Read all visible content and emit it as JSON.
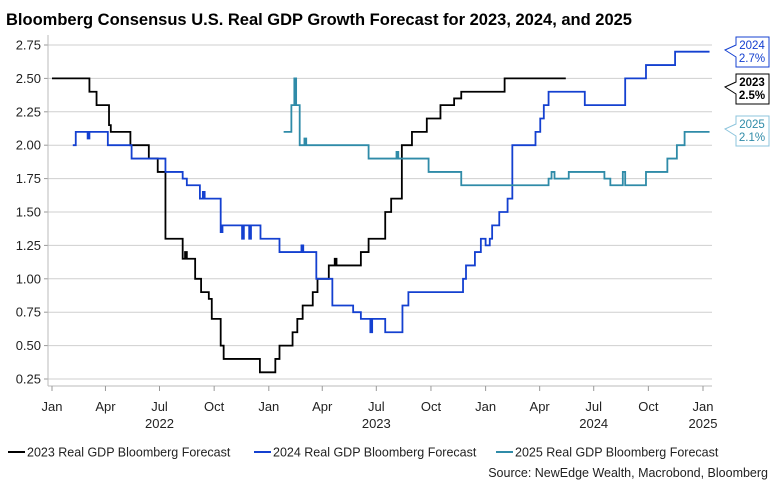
{
  "chart_data": {
    "type": "line",
    "title": "Bloomberg Consensus U.S. Real GDP Growth Forecast for 2023, 2024, and 2025",
    "source": "Source: NewEdge Wealth, Macrobond, Bloomberg",
    "ylim": [
      0.2,
      2.85
    ],
    "yticks": [
      "0.25",
      "0.50",
      "0.75",
      "1.00",
      "1.25",
      "1.50",
      "1.75",
      "2.00",
      "2.25",
      "2.50",
      "2.75"
    ],
    "xlim": [
      "2022-01-01",
      "2025-01-15"
    ],
    "xticks": [
      {
        "date": "2022-01-01",
        "label": "Jan"
      },
      {
        "date": "2022-04-01",
        "label": "Apr"
      },
      {
        "date": "2022-07-01",
        "label": "Jul"
      },
      {
        "date": "2022-10-01",
        "label": "Oct"
      },
      {
        "date": "2023-01-01",
        "label": "Jan"
      },
      {
        "date": "2023-04-01",
        "label": "Apr"
      },
      {
        "date": "2023-07-01",
        "label": "Jul"
      },
      {
        "date": "2023-10-01",
        "label": "Oct"
      },
      {
        "date": "2024-01-01",
        "label": "Jan"
      },
      {
        "date": "2024-04-01",
        "label": "Apr"
      },
      {
        "date": "2024-07-01",
        "label": "Jul"
      },
      {
        "date": "2024-10-01",
        "label": "Oct"
      },
      {
        "date": "2025-01-01",
        "label": "Jan"
      }
    ],
    "year_labels": [
      {
        "date": "2022-07-01",
        "label": "2022"
      },
      {
        "date": "2023-07-01",
        "label": "2023"
      },
      {
        "date": "2024-07-01",
        "label": "2024"
      },
      {
        "date": "2025-01-01",
        "label": "2025"
      }
    ],
    "grid": true,
    "legend_position": "bottom",
    "series": [
      {
        "name": "2023 Real GDP Bloomberg Forecast",
        "color": "#000000",
        "end_label": {
          "year": "2023",
          "value": "2.5%"
        },
        "step": true,
        "end": "2024-05-15",
        "points": [
          [
            "2022-01-01",
            2.5
          ],
          [
            "2022-03-05",
            2.4
          ],
          [
            "2022-03-17",
            2.3
          ],
          [
            "2022-04-07",
            2.15
          ],
          [
            "2022-04-10",
            2.1
          ],
          [
            "2022-05-13",
            2.0
          ],
          [
            "2022-06-13",
            1.9
          ],
          [
            "2022-06-28",
            1.8
          ],
          [
            "2022-07-11",
            1.3
          ],
          [
            "2022-08-09",
            1.15
          ],
          [
            "2022-08-13",
            1.2
          ],
          [
            "2022-08-16",
            1.15
          ],
          [
            "2022-08-30",
            1.0
          ],
          [
            "2022-09-09",
            0.9
          ],
          [
            "2022-09-22",
            0.85
          ],
          [
            "2022-09-27",
            0.7
          ],
          [
            "2022-10-12",
            0.5
          ],
          [
            "2022-10-17",
            0.4
          ],
          [
            "2022-12-17",
            0.3
          ],
          [
            "2023-01-12",
            0.4
          ],
          [
            "2023-01-19",
            0.5
          ],
          [
            "2023-02-10",
            0.6
          ],
          [
            "2023-02-18",
            0.7
          ],
          [
            "2023-02-27",
            0.8
          ],
          [
            "2023-03-16",
            0.9
          ],
          [
            "2023-03-24",
            1.0
          ],
          [
            "2023-04-12",
            1.1
          ],
          [
            "2023-04-22",
            1.15
          ],
          [
            "2023-04-25",
            1.1
          ],
          [
            "2023-06-05",
            1.2
          ],
          [
            "2023-06-18",
            1.3
          ],
          [
            "2023-07-16",
            1.5
          ],
          [
            "2023-07-26",
            1.6
          ],
          [
            "2023-08-13",
            2.0
          ],
          [
            "2023-08-30",
            2.1
          ],
          [
            "2023-09-24",
            2.2
          ],
          [
            "2023-10-17",
            2.3
          ],
          [
            "2023-11-09",
            2.35
          ],
          [
            "2023-11-21",
            2.4
          ],
          [
            "2024-02-02",
            2.5
          ]
        ]
      },
      {
        "name": "2024 Real GDP Bloomberg Forecast",
        "color": "#1440d0",
        "end_label": {
          "year": "2024",
          "value": "2.7%"
        },
        "step": true,
        "end": "2025-01-12",
        "points": [
          [
            "2022-02-05",
            2.0
          ],
          [
            "2022-02-10",
            2.1
          ],
          [
            "2022-03-02",
            2.05
          ],
          [
            "2022-03-05",
            2.1
          ],
          [
            "2022-04-05",
            2.0
          ],
          [
            "2022-05-15",
            1.9
          ],
          [
            "2022-07-11",
            1.8
          ],
          [
            "2022-08-09",
            1.75
          ],
          [
            "2022-08-16",
            1.7
          ],
          [
            "2022-09-07",
            1.6
          ],
          [
            "2022-09-12",
            1.65
          ],
          [
            "2022-09-15",
            1.6
          ],
          [
            "2022-10-12",
            1.35
          ],
          [
            "2022-10-15",
            1.4
          ],
          [
            "2022-11-17",
            1.3
          ],
          [
            "2022-11-20",
            1.4
          ],
          [
            "2022-11-29",
            1.3
          ],
          [
            "2022-12-02",
            1.4
          ],
          [
            "2022-12-18",
            1.3
          ],
          [
            "2023-01-19",
            1.2
          ],
          [
            "2023-02-25",
            1.25
          ],
          [
            "2023-02-28",
            1.2
          ],
          [
            "2023-03-22",
            1.0
          ],
          [
            "2023-04-18",
            0.8
          ],
          [
            "2023-05-23",
            0.75
          ],
          [
            "2023-06-05",
            0.7
          ],
          [
            "2023-06-21",
            0.6
          ],
          [
            "2023-06-24",
            0.7
          ],
          [
            "2023-07-16",
            0.6
          ],
          [
            "2023-08-14",
            0.8
          ],
          [
            "2023-08-24",
            0.9
          ],
          [
            "2023-11-24",
            1.0
          ],
          [
            "2023-11-29",
            1.1
          ],
          [
            "2023-12-14",
            1.2
          ],
          [
            "2023-12-24",
            1.3
          ],
          [
            "2024-01-01",
            1.25
          ],
          [
            "2024-01-08",
            1.3
          ],
          [
            "2024-01-12",
            1.4
          ],
          [
            "2024-01-24",
            1.5
          ],
          [
            "2024-02-07",
            1.6
          ],
          [
            "2024-02-15",
            2.0
          ],
          [
            "2024-03-25",
            2.1
          ],
          [
            "2024-04-02",
            2.2
          ],
          [
            "2024-04-08",
            2.3
          ],
          [
            "2024-04-16",
            2.4
          ],
          [
            "2024-06-16",
            2.3
          ],
          [
            "2024-08-23",
            2.5
          ],
          [
            "2024-09-27",
            2.6
          ],
          [
            "2024-11-15",
            2.7
          ]
        ]
      },
      {
        "name": "2025 Real GDP Bloomberg Forecast",
        "color": "#2f8ba8",
        "end_label": {
          "year": "2025",
          "value": "2.1%"
        },
        "step": true,
        "end": "2025-01-12",
        "points": [
          [
            "2023-01-26",
            2.1
          ],
          [
            "2023-02-08",
            2.3
          ],
          [
            "2023-02-13",
            2.5
          ],
          [
            "2023-02-16",
            2.3
          ],
          [
            "2023-02-22",
            2.0
          ],
          [
            "2023-03-02",
            2.05
          ],
          [
            "2023-03-05",
            2.0
          ],
          [
            "2023-06-18",
            1.9
          ],
          [
            "2023-08-04",
            1.95
          ],
          [
            "2023-08-07",
            1.9
          ],
          [
            "2023-09-27",
            1.8
          ],
          [
            "2023-11-21",
            1.7
          ],
          [
            "2024-04-16",
            1.75
          ],
          [
            "2024-04-21",
            1.8
          ],
          [
            "2024-04-26",
            1.75
          ],
          [
            "2024-05-20",
            1.8
          ],
          [
            "2024-07-19",
            1.75
          ],
          [
            "2024-07-29",
            1.7
          ],
          [
            "2024-08-19",
            1.8
          ],
          [
            "2024-08-23",
            1.7
          ],
          [
            "2024-09-27",
            1.8
          ],
          [
            "2024-11-02",
            1.9
          ],
          [
            "2024-11-18",
            2.0
          ],
          [
            "2024-12-01",
            2.1
          ]
        ]
      }
    ]
  }
}
